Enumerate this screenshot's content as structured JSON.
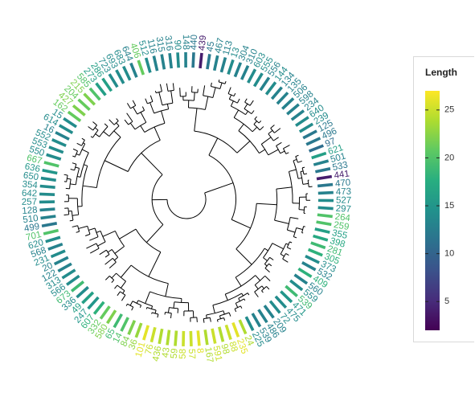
{
  "chart_data": {
    "type": "tree",
    "layout": "circular",
    "color_variable": "Length",
    "legend": {
      "title": "Length",
      "placement": "right",
      "range": [
        2,
        27
      ],
      "ticks": [
        5,
        10,
        15,
        20,
        25
      ],
      "colormap": "viridis"
    },
    "tip_labels": [
      {
        "label": "90",
        "length": 14
      },
      {
        "label": "148",
        "length": 13
      },
      {
        "label": "440",
        "length": 12
      },
      {
        "label": "439",
        "length": 4
      },
      {
        "label": "45",
        "length": 12
      },
      {
        "label": "467",
        "length": 13
      },
      {
        "label": "113",
        "length": 13
      },
      {
        "label": "13",
        "length": 14
      },
      {
        "label": "304",
        "length": 13
      },
      {
        "label": "310",
        "length": 13
      },
      {
        "label": "603",
        "length": 14
      },
      {
        "label": "555",
        "length": 14
      },
      {
        "label": "556",
        "length": 13
      },
      {
        "label": "144",
        "length": 14
      },
      {
        "label": "134",
        "length": 13
      },
      {
        "label": "135",
        "length": 13
      },
      {
        "label": "506",
        "length": 13
      },
      {
        "label": "598",
        "length": 13
      },
      {
        "label": "234",
        "length": 13
      },
      {
        "label": "640",
        "length": 14
      },
      {
        "label": "239",
        "length": 14
      },
      {
        "label": "125",
        "length": 12
      },
      {
        "label": "496",
        "length": 12
      },
      {
        "label": "97",
        "length": 11
      },
      {
        "label": "621",
        "length": 16
      },
      {
        "label": "501",
        "length": 13
      },
      {
        "label": "533",
        "length": 12
      },
      {
        "label": "441",
        "length": 4
      },
      {
        "label": "470",
        "length": 12
      },
      {
        "label": "473",
        "length": 13
      },
      {
        "label": "527",
        "length": 14
      },
      {
        "label": "297",
        "length": 14
      },
      {
        "label": "264",
        "length": 20
      },
      {
        "label": "259",
        "length": 20
      },
      {
        "label": "355",
        "length": 16
      },
      {
        "label": "398",
        "length": 17
      },
      {
        "label": "281",
        "length": 19
      },
      {
        "label": "305",
        "length": 18
      },
      {
        "label": "373",
        "length": 14
      },
      {
        "label": "532",
        "length": 13
      },
      {
        "label": "409",
        "length": 18
      },
      {
        "label": "560",
        "length": 13
      },
      {
        "label": "559",
        "length": 14
      },
      {
        "label": "539",
        "length": 19
      },
      {
        "label": "471",
        "length": 15
      },
      {
        "label": "475",
        "length": 14
      },
      {
        "label": "72",
        "length": 14
      },
      {
        "label": "209",
        "length": 13
      },
      {
        "label": "486",
        "length": 13
      },
      {
        "label": "539",
        "length": 13
      },
      {
        "label": "225",
        "length": 14
      },
      {
        "label": "24",
        "length": 24
      },
      {
        "label": "235",
        "length": 26
      },
      {
        "label": "88",
        "length": 25
      },
      {
        "label": "98",
        "length": 24
      },
      {
        "label": "591",
        "length": 25
      },
      {
        "label": "167",
        "length": 24
      },
      {
        "label": "8",
        "length": 26
      },
      {
        "label": "57",
        "length": 25
      },
      {
        "label": "58",
        "length": 25
      },
      {
        "label": "59",
        "length": 24
      },
      {
        "label": "43",
        "length": 24
      },
      {
        "label": "436",
        "length": 24
      },
      {
        "label": "76",
        "length": 25
      },
      {
        "label": "101",
        "length": 26
      },
      {
        "label": "36",
        "length": 23
      },
      {
        "label": "84",
        "length": 22
      },
      {
        "label": "14",
        "length": 20
      },
      {
        "label": "65",
        "length": 19
      },
      {
        "label": "580",
        "length": 22
      },
      {
        "label": "332",
        "length": 21
      },
      {
        "label": "607",
        "length": 18
      },
      {
        "label": "247",
        "length": 15
      },
      {
        "label": "49",
        "length": 16
      },
      {
        "label": "336",
        "length": 14
      },
      {
        "label": "673",
        "length": 19
      },
      {
        "label": "566",
        "length": 14
      },
      {
        "label": "313",
        "length": 14
      },
      {
        "label": "122",
        "length": 13
      },
      {
        "label": "20",
        "length": 13
      },
      {
        "label": "231",
        "length": 14
      },
      {
        "label": "568",
        "length": 13
      },
      {
        "label": "620",
        "length": 14
      },
      {
        "label": "701",
        "length": 20
      },
      {
        "label": "499",
        "length": 12
      },
      {
        "label": "510",
        "length": 13
      },
      {
        "label": "128",
        "length": 13
      },
      {
        "label": "257",
        "length": 14
      },
      {
        "label": "642",
        "length": 14
      },
      {
        "label": "354",
        "length": 14
      },
      {
        "label": "650",
        "length": 14
      },
      {
        "label": "636",
        "length": 15
      },
      {
        "label": "667",
        "length": 20
      },
      {
        "label": "550",
        "length": 14
      },
      {
        "label": "553",
        "length": 14
      },
      {
        "label": "552",
        "length": 14
      },
      {
        "label": "16",
        "length": 13
      },
      {
        "label": "614",
        "length": 14
      },
      {
        "label": "15",
        "length": 14
      },
      {
        "label": "162",
        "length": 21
      },
      {
        "label": "427",
        "length": 22
      },
      {
        "label": "204",
        "length": 21
      },
      {
        "label": "215",
        "length": 22
      },
      {
        "label": "585",
        "length": 20
      },
      {
        "label": "273",
        "length": 16
      },
      {
        "label": "286",
        "length": 16
      },
      {
        "label": "723",
        "length": 14
      },
      {
        "label": "693",
        "length": 14
      },
      {
        "label": "683",
        "length": 14
      },
      {
        "label": "644",
        "length": 13
      },
      {
        "label": "406",
        "length": 21
      },
      {
        "label": "512",
        "length": 14
      },
      {
        "label": "116",
        "length": 13
      },
      {
        "label": "315",
        "length": 13
      },
      {
        "label": "316",
        "length": 13
      }
    ]
  }
}
